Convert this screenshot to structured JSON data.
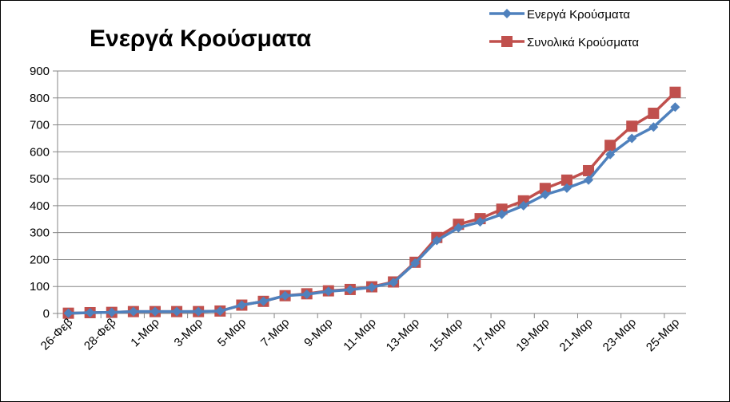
{
  "chart_data": {
    "type": "line",
    "title": "Ενεργά Κρούσματα",
    "xlabel": "",
    "ylabel": "",
    "ylim": [
      0,
      900
    ],
    "yticks": [
      0,
      100,
      200,
      300,
      400,
      500,
      600,
      700,
      800,
      900
    ],
    "grid": true,
    "legend_position": "top-right",
    "categories": [
      "26-Φεβ",
      "27-Φεβ",
      "28-Φεβ",
      "29-Φεβ",
      "1-Μαρ",
      "2-Μαρ",
      "3-Μαρ",
      "4-Μαρ",
      "5-Μαρ",
      "6-Μαρ",
      "7-Μαρ",
      "8-Μαρ",
      "9-Μαρ",
      "10-Μαρ",
      "11-Μαρ",
      "12-Μαρ",
      "13-Μαρ",
      "14-Μαρ",
      "15-Μαρ",
      "16-Μαρ",
      "17-Μαρ",
      "18-Μαρ",
      "19-Μαρ",
      "20-Μαρ",
      "21-Μαρ",
      "22-Μαρ",
      "23-Μαρ",
      "24-Μαρ",
      "25-Μαρ"
    ],
    "tick_labels": [
      "26-Φεβ",
      "28-Φεβ",
      "1-Μαρ",
      "3-Μαρ",
      "5-Μαρ",
      "7-Μαρ",
      "9-Μαρ",
      "11-Μαρ",
      "13-Μαρ",
      "15-Μαρ",
      "17-Μαρ",
      "19-Μαρ",
      "21-Μαρ",
      "23-Μαρ",
      "25-Μαρ"
    ],
    "series": [
      {
        "name": "Ενεργά Κρούσματα",
        "color": "#4f81bd",
        "marker": "diamond",
        "values": [
          1,
          3,
          4,
          7,
          7,
          7,
          7,
          9,
          31,
          45,
          66,
          71,
          82,
          88,
          97,
          115,
          187,
          271,
          318,
          340,
          368,
          400,
          441,
          465,
          495,
          590,
          650,
          692,
          766
        ]
      },
      {
        "name": "Συνολικά Κρούσματα",
        "color": "#c0504d",
        "marker": "square",
        "values": [
          1,
          3,
          4,
          7,
          7,
          7,
          7,
          9,
          31,
          45,
          66,
          73,
          84,
          89,
          99,
          117,
          190,
          282,
          331,
          352,
          387,
          418,
          464,
          495,
          530,
          624,
          695,
          743,
          821
        ]
      }
    ]
  }
}
